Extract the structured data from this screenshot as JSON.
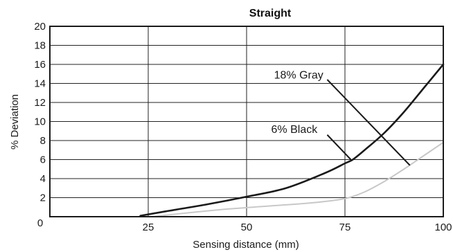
{
  "chart_data": {
    "type": "line",
    "title": "Straight",
    "xlabel": "Sensing distance (mm)",
    "ylabel": "% Deviation",
    "xlim": [
      0,
      100
    ],
    "ylim": [
      0,
      20
    ],
    "x_ticks": [
      25,
      50,
      75,
      100
    ],
    "y_ticks": [
      0,
      2,
      4,
      6,
      8,
      10,
      12,
      14,
      16,
      18,
      20
    ],
    "grid": {
      "vertical": [
        25,
        50,
        75,
        100
      ],
      "horizontal": [
        2,
        4,
        6,
        8,
        10,
        12,
        14,
        16,
        18,
        20
      ]
    },
    "colors": {
      "series_black": "#1a1a1a",
      "series_gray": "#c8c8c8",
      "grid": "#222222"
    },
    "series": [
      {
        "key": "black",
        "color": "#1a1a1a",
        "points": [
          [
            23,
            0.1
          ],
          [
            30,
            0.6
          ],
          [
            40,
            1.3
          ],
          [
            50,
            2.1
          ],
          [
            60,
            3.0
          ],
          [
            70,
            4.6
          ],
          [
            75,
            5.6
          ],
          [
            77,
            6.0
          ],
          [
            80,
            7.0
          ],
          [
            85,
            8.8
          ],
          [
            90,
            11.0
          ],
          [
            95,
            13.5
          ],
          [
            100,
            16.0
          ]
        ]
      },
      {
        "key": "gray",
        "color": "#c8c8c8",
        "points": [
          [
            26,
            0.0
          ],
          [
            35,
            0.4
          ],
          [
            45,
            0.8
          ],
          [
            55,
            1.1
          ],
          [
            65,
            1.4
          ],
          [
            72,
            1.7
          ],
          [
            76,
            2.0
          ],
          [
            80,
            2.6
          ],
          [
            85,
            3.7
          ],
          [
            90,
            5.0
          ],
          [
            95,
            6.4
          ],
          [
            100,
            7.8
          ]
        ]
      }
    ],
    "annotations": [
      {
        "text": "18% Gray",
        "label_at": [
          69.5,
          14.5
        ],
        "line_from": [
          70.5,
          14.4
        ],
        "line_to": [
          91.5,
          5.4
        ]
      },
      {
        "text": "6% Black",
        "label_at": [
          68,
          8.8
        ],
        "line_from": [
          70.5,
          8.6
        ],
        "line_to": [
          76.5,
          6.0
        ]
      }
    ]
  }
}
